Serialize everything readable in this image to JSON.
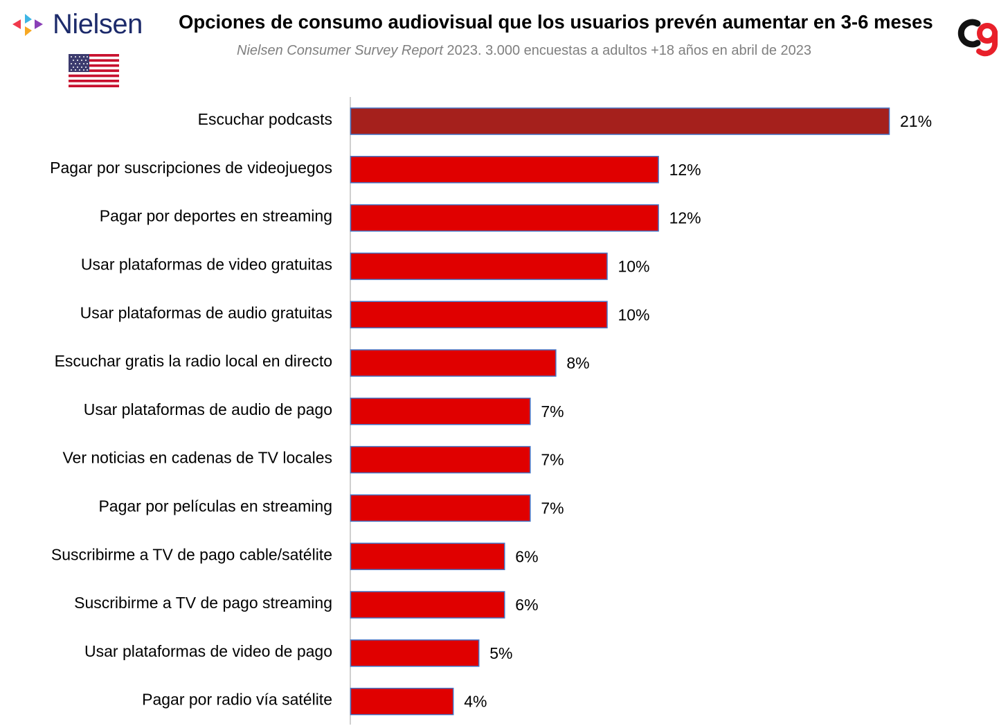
{
  "header": {
    "brand": "Nielsen",
    "title": "Opciones de consumo audiovisual que los usuarios prevén aumentar en 3-6 meses",
    "subtitle_italic": "Nielsen Consumer Survey Report",
    "subtitle_rest": " 2023. 3.000 encuestas a adultos +18 años en abril de 2023"
  },
  "icons": {
    "brand_logo": "nielsen-logo-icon",
    "flag": "usa-flag-icon",
    "corner_logo": "cg-logo-icon"
  },
  "colors": {
    "highlight_bar": "#A5201C",
    "bar": "#E00000",
    "bar_border": "#4472C4",
    "axis": "#bfbfbf"
  },
  "chart_data": {
    "type": "bar",
    "orientation": "horizontal",
    "categories": [
      "Escuchar podcasts",
      "Pagar por suscripciones de videojuegos",
      "Pagar por deportes en streaming",
      "Usar plataformas de video gratuitas",
      "Usar plataformas de audio gratuitas",
      "Escuchar gratis la radio local en directo",
      "Usar plataformas de audio de pago",
      "Ver noticias en cadenas de TV locales",
      "Pagar por películas en streaming",
      "Suscribirme a TV de pago cable/satélite",
      "Suscribirme a TV de pago streaming",
      "Usar plataformas de video de pago",
      "Pagar por radio vía satélite"
    ],
    "values": [
      21,
      12,
      12,
      10,
      10,
      8,
      7,
      7,
      7,
      6,
      6,
      5,
      4
    ],
    "labels": [
      "21%",
      "12%",
      "12%",
      "10%",
      "10%",
      "8%",
      "7%",
      "7%",
      "7%",
      "6%",
      "6%",
      "5%",
      "4%"
    ],
    "highlight_index": 0,
    "xlim": [
      0,
      21
    ],
    "grid": false,
    "legend": "none"
  }
}
